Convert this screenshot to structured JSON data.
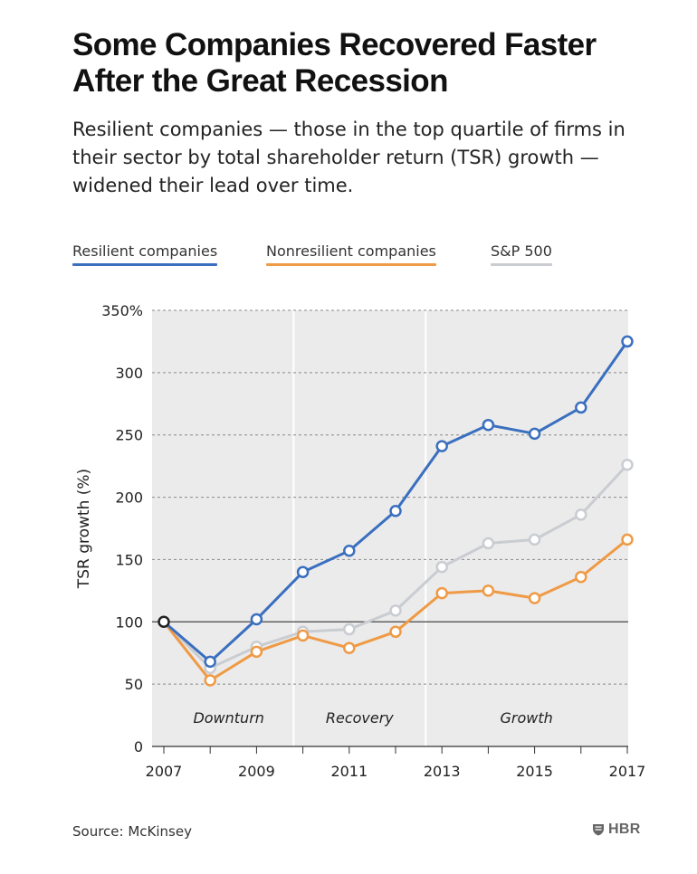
{
  "header": {
    "title": "Some Companies Recovered Faster After the Great Recession",
    "subtitle": "Resilient companies — those in the top quartile of firms in their sector by total shareholder return (TSR) growth — widened their lead over time."
  },
  "legend": [
    {
      "label": "Resilient companies",
      "color": "#3a6fbf"
    },
    {
      "label": "Nonresilient companies",
      "color": "#ef9a45"
    },
    {
      "label": "S&P 500",
      "color": "#c9ccd1"
    }
  ],
  "footer": {
    "source": "Source: McKinsey",
    "logo_text": "HBR"
  },
  "chart_data": {
    "type": "line",
    "ylabel": "TSR growth (%)",
    "xlabel": "",
    "ylim": [
      0,
      350
    ],
    "xlim": [
      2007,
      2017
    ],
    "x": [
      2007,
      2008,
      2009,
      2010,
      2011,
      2012,
      2013,
      2014,
      2015,
      2016,
      2017
    ],
    "x_tick_labels": [
      "2007",
      "",
      "2009",
      "",
      "2011",
      "",
      "2013",
      "",
      "2015",
      "",
      "2017"
    ],
    "y_ticks": [
      0,
      50,
      100,
      150,
      200,
      250,
      300,
      350
    ],
    "y_tick_labels": [
      "0",
      "50",
      "100",
      "150",
      "200",
      "250",
      "300",
      "350%"
    ],
    "baseline": 100,
    "grid": "horizontal dashed",
    "phases": [
      {
        "label": "Downturn",
        "start": 2007,
        "end": 2009.8
      },
      {
        "label": "Recovery",
        "start": 2009.8,
        "end": 2012.65
      },
      {
        "label": "Growth",
        "start": 2012.65,
        "end": 2017
      }
    ],
    "series": [
      {
        "name": "S&P 500",
        "color": "#c9ccd1",
        "values": [
          100,
          63,
          80,
          92,
          94,
          109,
          144,
          163,
          166,
          186,
          226
        ]
      },
      {
        "name": "Nonresilient companies",
        "color": "#ef9a45",
        "values": [
          100,
          53,
          76,
          89,
          79,
          92,
          123,
          125,
          119,
          136,
          166
        ]
      },
      {
        "name": "Resilient companies",
        "color": "#3a6fbf",
        "values": [
          100,
          68,
          102,
          140,
          157,
          189,
          241,
          258,
          251,
          272,
          325
        ]
      }
    ]
  }
}
